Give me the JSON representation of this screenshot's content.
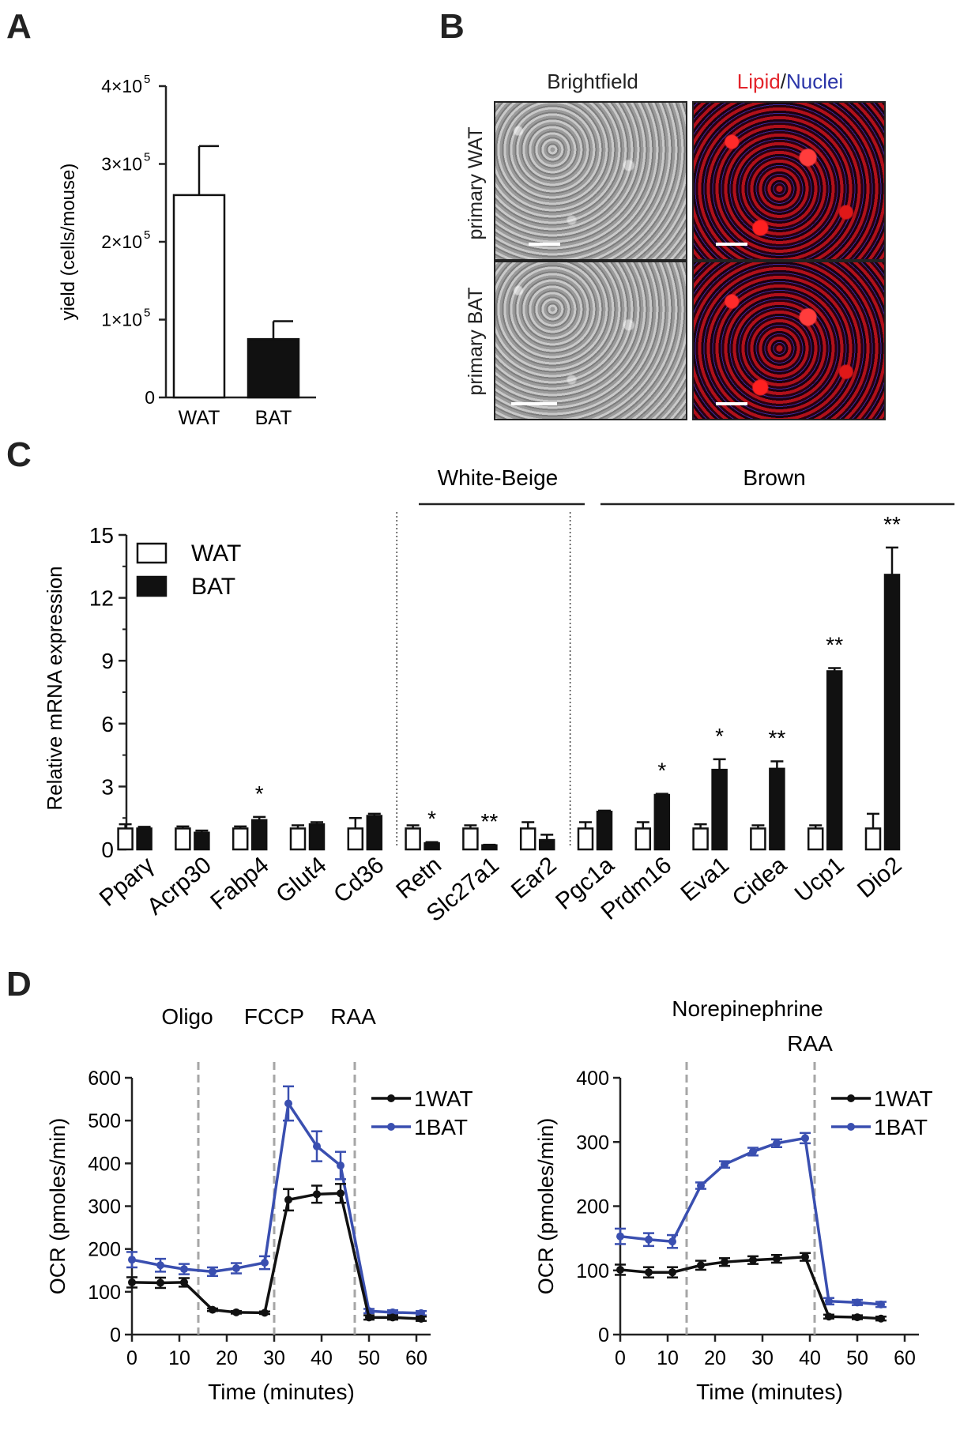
{
  "panels": {
    "a": "A",
    "b": "B",
    "c": "C",
    "d": "D"
  },
  "colors": {
    "wat_fill": "#ffffff",
    "bat_fill": "#111111",
    "wat_line": "#111111",
    "bat_line": "#3a4fb0",
    "drug_line": "#a6a6a6"
  },
  "microscopy": {
    "col_brightfield": "Brightfield",
    "col_lipid": "Lipid",
    "col_sep": "/",
    "col_nuclei": "Nuclei",
    "row_wat": "primary WAT",
    "row_bat": "primary BAT",
    "colors": {
      "lipid": "#e3242b",
      "nuclei": "#2b35a8"
    }
  },
  "chart_data": [
    {
      "id": "A",
      "type": "bar",
      "categories": [
        "WAT",
        "BAT"
      ],
      "values": [
        260000,
        75000
      ],
      "errors": [
        63000,
        23000
      ],
      "ylabel": "yield (cells/mouse)",
      "ylim": [
        0,
        400000
      ],
      "ytick_values": [
        0,
        100000,
        200000,
        300000,
        400000
      ],
      "ytick_labels": [
        "0",
        "1×10",
        "2×10",
        "3×10",
        "4×10"
      ],
      "ytick_exp": "5"
    },
    {
      "id": "C",
      "type": "bar",
      "ylabel": "Relative mRNA expression",
      "ylim": [
        0,
        15
      ],
      "yticks": [
        0,
        3,
        6,
        9,
        12,
        15
      ],
      "legend": [
        "WAT",
        "BAT"
      ],
      "group_labels": [
        "White-Beige",
        "Brown"
      ],
      "genes": [
        "Pparγ",
        "Acrp30",
        "Fabp4",
        "Glut4",
        "Cd36",
        "Retn",
        "Slc27a1",
        "Ear2",
        "Pgc1a",
        "Prdm16",
        "Eva1",
        "Cidea",
        "Ucp1",
        "Dio2"
      ],
      "series": [
        {
          "name": "WAT",
          "values": [
            1,
            1,
            1,
            1,
            1,
            1,
            1,
            1,
            1,
            1,
            1,
            1,
            1,
            1
          ],
          "errors": [
            0.2,
            0.1,
            0.1,
            0.15,
            0.5,
            0.15,
            0.15,
            0.3,
            0.3,
            0.3,
            0.2,
            0.15,
            0.15,
            0.7
          ]
        },
        {
          "name": "BAT",
          "values": [
            1,
            0.8,
            1.4,
            1.2,
            1.6,
            0.3,
            0.2,
            0.45,
            1.8,
            2.6,
            3.8,
            3.85,
            8.5,
            13.1
          ],
          "errors": [
            0.08,
            0.1,
            0.15,
            0.1,
            0.1,
            0.05,
            0.02,
            0.25,
            0.05,
            0.05,
            0.5,
            0.35,
            0.15,
            1.3
          ]
        }
      ],
      "significance": [
        "",
        "",
        "*",
        "",
        "",
        "*",
        "**",
        "",
        "",
        "*",
        "*",
        "**",
        "**",
        "**"
      ]
    },
    {
      "id": "D-left",
      "type": "line",
      "xlabel": "Time (minutes)",
      "ylabel": "OCR (pmoles/min)",
      "xlim": [
        0,
        63
      ],
      "ylim": [
        0,
        600
      ],
      "xticks": [
        0,
        10,
        20,
        30,
        40,
        50,
        60
      ],
      "yticks": [
        0,
        100,
        200,
        300,
        400,
        500,
        600
      ],
      "injections": [
        {
          "label": "Oligo",
          "x": 14
        },
        {
          "label": "FCCP",
          "x": 30
        },
        {
          "label": "RAA",
          "x": 47
        }
      ],
      "x": [
        0,
        6,
        11,
        17,
        22,
        28,
        33,
        39,
        44,
        50,
        55,
        61
      ],
      "series": [
        {
          "name": "1WAT",
          "values": [
            122,
            121,
            122,
            58,
            52,
            51,
            315,
            328,
            330,
            40,
            40,
            37
          ],
          "errors": [
            12,
            12,
            10,
            3,
            3,
            3,
            25,
            20,
            22,
            5,
            5,
            5
          ]
        },
        {
          "name": "1BAT",
          "values": [
            175,
            162,
            153,
            147,
            155,
            168,
            540,
            440,
            395,
            55,
            52,
            50
          ],
          "errors": [
            18,
            15,
            12,
            10,
            12,
            15,
            40,
            35,
            32,
            5,
            5,
            5
          ]
        }
      ]
    },
    {
      "id": "D-right",
      "type": "line",
      "xlabel": "Time (minutes)",
      "ylabel": "OCR (pmoles/min)",
      "xlim": [
        0,
        63
      ],
      "ylim": [
        0,
        400
      ],
      "xticks": [
        0,
        10,
        20,
        30,
        40,
        50,
        60
      ],
      "yticks": [
        0,
        100,
        200,
        300,
        400
      ],
      "injections": [
        {
          "label": "Norepinephrine",
          "x": 14
        },
        {
          "label": "RAA",
          "x": 41
        }
      ],
      "x": [
        0,
        6,
        11,
        17,
        22,
        28,
        33,
        39,
        44,
        50,
        55
      ],
      "series": [
        {
          "name": "1WAT",
          "values": [
            101,
            97,
            97,
            108,
            113,
            116,
            118,
            121,
            28,
            27,
            25
          ],
          "errors": [
            8,
            8,
            8,
            7,
            6,
            6,
            6,
            6,
            3,
            3,
            3
          ]
        },
        {
          "name": "1BAT",
          "values": [
            153,
            148,
            145,
            232,
            265,
            285,
            298,
            306,
            52,
            50,
            47
          ],
          "errors": [
            12,
            10,
            10,
            5,
            5,
            6,
            6,
            8,
            5,
            4,
            4
          ]
        }
      ]
    }
  ]
}
